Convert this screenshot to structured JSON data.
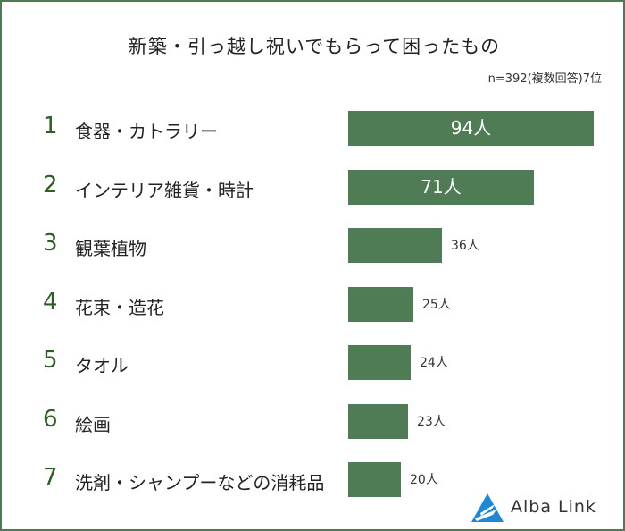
{
  "header": {
    "title": "新築・引っ越し祝いでもらって困ったもの",
    "subtitle": "n=392(複数回答)7位"
  },
  "logo": {
    "text": "Alba Link",
    "icon": "alba-link-logo-icon"
  },
  "colors": {
    "bar": "#4f7b55",
    "rank": "#2f5d26",
    "border": "#4f7a56"
  },
  "chart_data": {
    "type": "bar",
    "orientation": "horizontal",
    "title": "新築・引っ越し祝いでもらって困ったもの",
    "subtitle": "n=392(複数回答)7位",
    "categories": [
      "食器・カトラリー",
      "インテリア雑貨・時計",
      "観葉植物",
      "花束・造花",
      "タオル",
      "絵画",
      "洗剤・シャンプーなどの消耗品"
    ],
    "ranks": [
      "1",
      "2",
      "3",
      "4",
      "5",
      "6",
      "7"
    ],
    "values": [
      94,
      71,
      36,
      25,
      24,
      23,
      20
    ],
    "value_labels": [
      "94人",
      "71人",
      "36人",
      "25人",
      "24人",
      "23人",
      "20人"
    ],
    "unit": "人",
    "xlim": [
      0,
      94
    ],
    "grid": false,
    "legend": "none"
  }
}
